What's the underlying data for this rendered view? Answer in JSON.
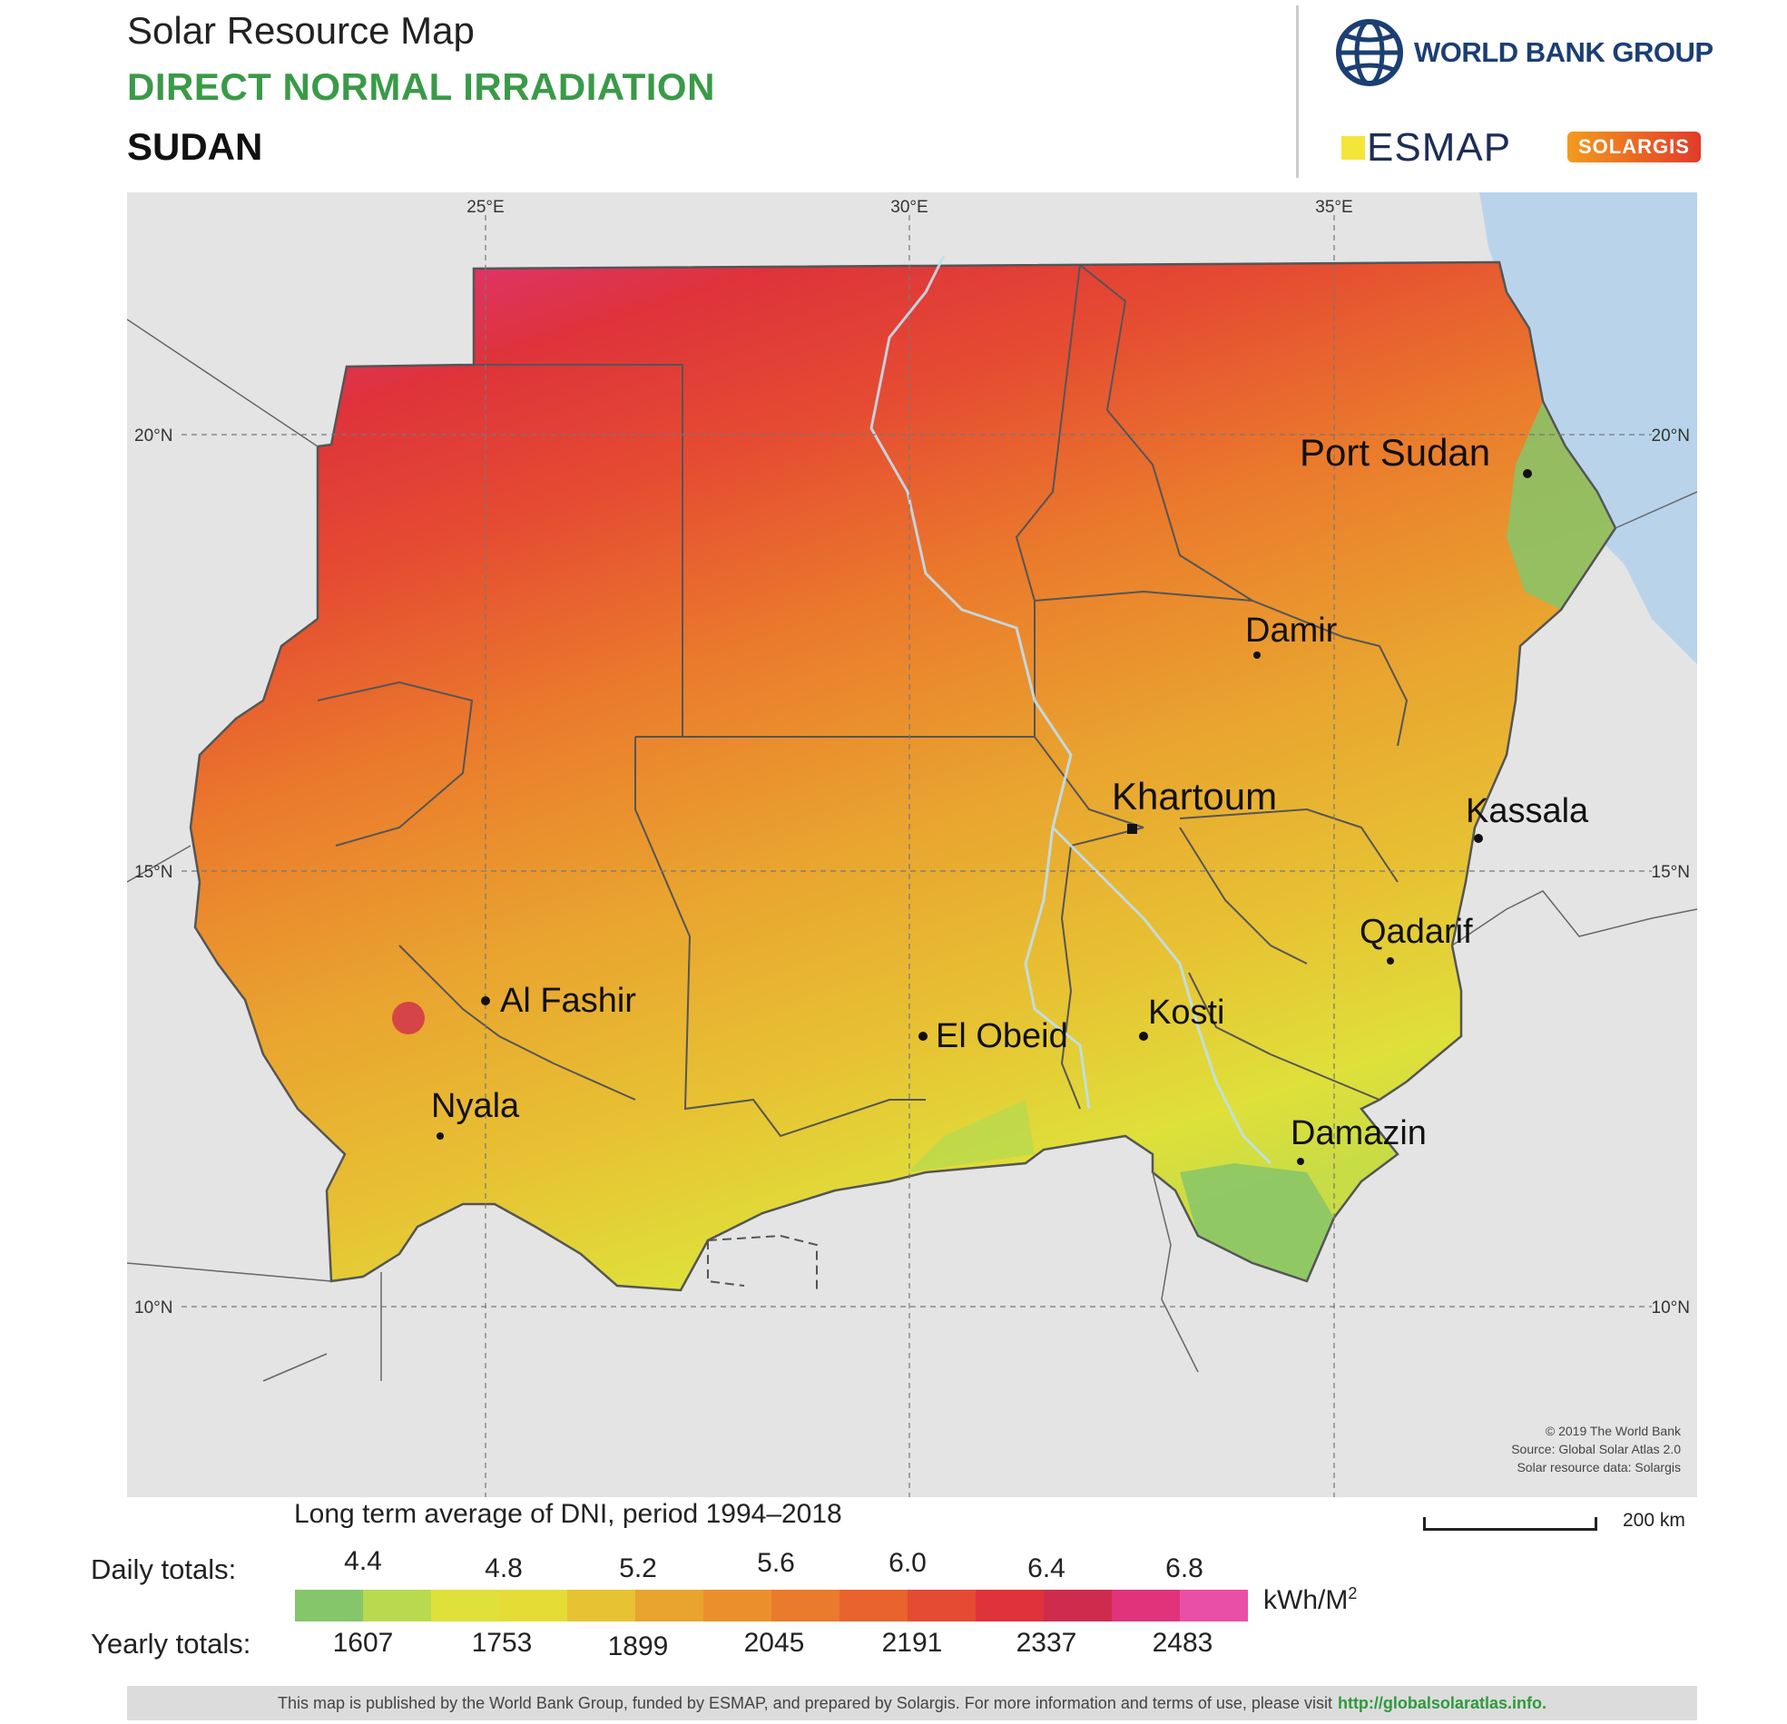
{
  "header": {
    "title": "Solar Resource Map",
    "subtitle": "DIRECT NORMAL IRRADIATION",
    "country": "SUDAN"
  },
  "logos": {
    "world_bank": "WORLD BANK GROUP",
    "esmap": "ESMAP",
    "solargis": "SOLARGIS"
  },
  "map": {
    "graticule": {
      "lon_labels": [
        "25°E",
        "30°E",
        "35°E"
      ],
      "lat_labels": [
        "20°N",
        "15°N",
        "10°N"
      ]
    },
    "cities": [
      {
        "name": "Port Sudan"
      },
      {
        "name": "Damir"
      },
      {
        "name": "Khartoum"
      },
      {
        "name": "Kassala"
      },
      {
        "name": "Qadarif"
      },
      {
        "name": "Al Fashir"
      },
      {
        "name": "El Obeid"
      },
      {
        "name": "Kosti"
      },
      {
        "name": "Nyala"
      },
      {
        "name": "Damazin"
      }
    ],
    "credits": [
      "© 2019 The World Bank",
      "Source: Global Solar Atlas 2.0",
      "Solar resource data: Solargis"
    ],
    "colors": {
      "background": "#e4e4e4",
      "sea": "#b9d4ea",
      "border": "#555555"
    }
  },
  "legend": {
    "title": "Long term average of DNI, period 1994–2018",
    "scale_label": "200 km",
    "daily_label": "Daily totals:",
    "yearly_label": "Yearly totals:",
    "daily_values": [
      "4.4",
      "4.8",
      "5.2",
      "5.6",
      "6.0",
      "6.4",
      "6.8"
    ],
    "yearly_values": [
      "1607",
      "1753",
      "1899",
      "2045",
      "2191",
      "2337",
      "2483"
    ],
    "unit": "kWh/M",
    "unit_sup": "2",
    "colors": [
      "#86c66a",
      "#b9d94e",
      "#dfe03a",
      "#e5dc36",
      "#e7c233",
      "#e9a32f",
      "#eb8f2d",
      "#ea7a2c",
      "#e9632d",
      "#e54a32",
      "#de333b",
      "#cf2c4d",
      "#e0337c",
      "#ea4fa8"
    ]
  },
  "footer": {
    "text": "This map is published by the World Bank Group, funded by ESMAP, and prepared by Solargis. For more information and terms of use, please visit",
    "link": "http://globalsolaratlas.info."
  }
}
